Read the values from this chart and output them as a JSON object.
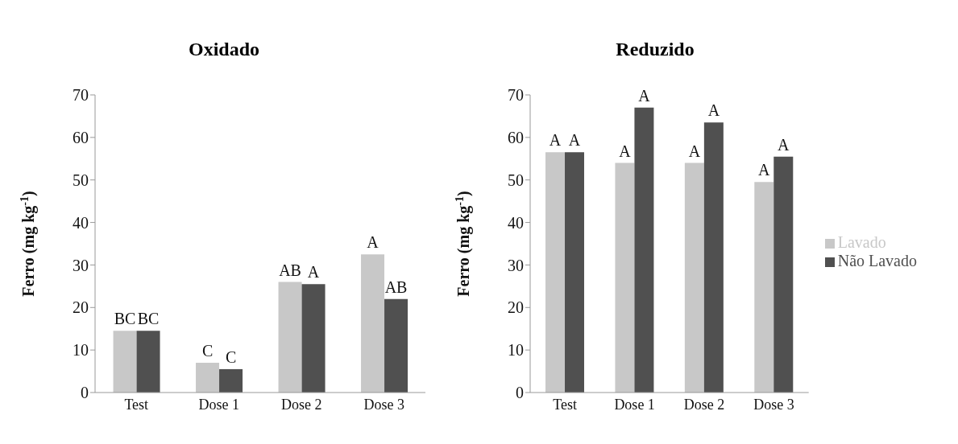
{
  "chart_data": [
    {
      "type": "bar",
      "title": "Oxidado",
      "ylabel": "Ferro (mg kg$^{-1}$)",
      "categories": [
        "Test",
        "Dose 1",
        "Dose 2",
        "Dose 3"
      ],
      "ylim": [
        0,
        70
      ],
      "yticks": [
        0,
        10,
        20,
        30,
        40,
        50,
        60,
        70
      ],
      "grid": false,
      "legend": false,
      "series": [
        {
          "color": "#c8c8c8",
          "values": [
            14.5,
            7,
            26,
            32.5
          ],
          "value_labels": [
            "BC",
            "C",
            "AB",
            "A"
          ]
        },
        {
          "color": "#505050",
          "values": [
            14.5,
            5.5,
            25.5,
            22
          ],
          "value_labels": [
            "BC",
            "C",
            "A",
            "AB"
          ]
        }
      ]
    },
    {
      "type": "bar",
      "title": "Reduzido",
      "ylabel": "Ferro (mg kg$^{-1}$)",
      "categories": [
        "Test",
        "Dose 1",
        "Dose 2",
        "Dose 3"
      ],
      "ylim": [
        0,
        70
      ],
      "yticks": [
        0,
        10,
        20,
        30,
        40,
        50,
        60,
        70
      ],
      "grid": false,
      "legend": "right",
      "series": [
        {
          "name": "Lavado",
          "color": "#c8c8c8",
          "values": [
            56.5,
            54,
            54,
            49.5
          ],
          "value_labels": [
            "A",
            "A",
            "A",
            "A"
          ]
        },
        {
          "name": "Não Lavado",
          "color": "#505050",
          "values": [
            56.5,
            67,
            63.5,
            55.5
          ],
          "value_labels": [
            "A",
            "A",
            "A",
            "A"
          ]
        }
      ]
    }
  ]
}
